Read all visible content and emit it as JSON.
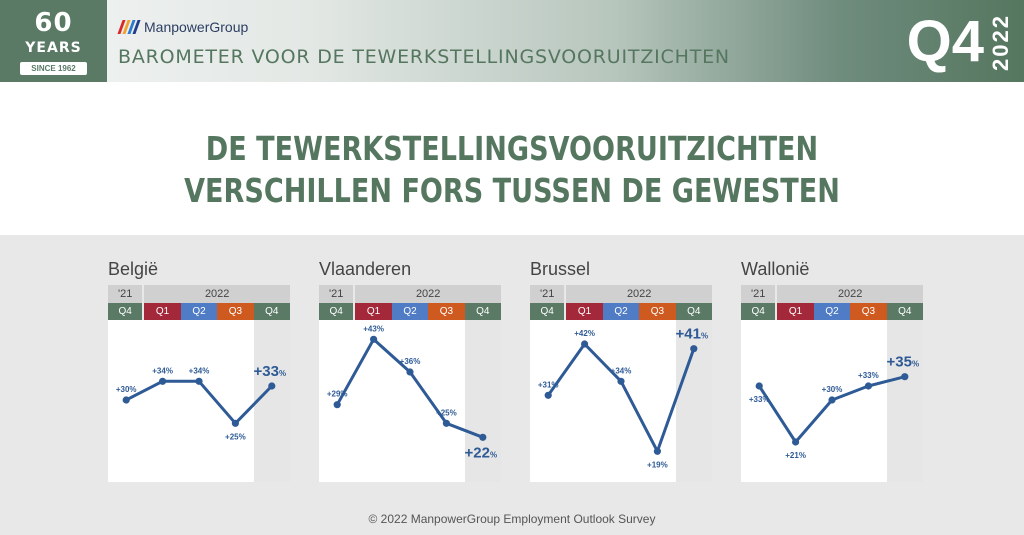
{
  "header": {
    "badge": {
      "number": "60",
      "years": "YEARS",
      "since": "SINCE 1962"
    },
    "brand_name": "ManpowerGroup",
    "subtitle": "BAROMETER VOOR DE TEWERKSTELLINGSVOORUITZICHTEN",
    "quarter": "Q4",
    "year": "2022"
  },
  "title": {
    "line1": "DE TEWERKSTELLINGSVOORUITZICHTEN",
    "line2": "VERSCHILLEN FORS TUSSEN DE GEWESTEN"
  },
  "colors": {
    "green": "#5a7a66",
    "q1": "#a3293a",
    "q2": "#4f7cc4",
    "q3": "#cf5a1f",
    "q4": "#5a7a66",
    "line": "#2e5a96",
    "brand_bars": [
      "#d62a2a",
      "#f0a22e",
      "#2c7bd2",
      "#1f3f8a"
    ]
  },
  "chart_data": [
    {
      "type": "line",
      "title": "België",
      "header_prev_year": "'21",
      "header_year": "2022",
      "categories": [
        "Q4",
        "Q1",
        "Q2",
        "Q3",
        "Q4"
      ],
      "values": [
        30,
        34,
        34,
        25,
        33
      ],
      "labels": [
        "+30%",
        "+34%",
        "+34%",
        "+25%",
        "+33"
      ],
      "last_label_suffix": "%",
      "ylim": [
        15,
        45
      ]
    },
    {
      "type": "line",
      "title": "Vlaanderen",
      "header_prev_year": "'21",
      "header_year": "2022",
      "categories": [
        "Q4",
        "Q1",
        "Q2",
        "Q3",
        "Q4"
      ],
      "values": [
        29,
        43,
        36,
        25,
        22
      ],
      "labels": [
        "+29%",
        "+43%",
        "+36%",
        "+25%",
        "+22"
      ],
      "last_label_suffix": "%",
      "ylim": [
        15,
        45
      ]
    },
    {
      "type": "line",
      "title": "Brussel",
      "header_prev_year": "'21",
      "header_year": "2022",
      "categories": [
        "Q4",
        "Q1",
        "Q2",
        "Q3",
        "Q4"
      ],
      "values": [
        31,
        42,
        34,
        19,
        41
      ],
      "labels": [
        "+31%",
        "+42%",
        "+34%",
        "+19%",
        "+41"
      ],
      "last_label_suffix": "%",
      "ylim": [
        15,
        45
      ]
    },
    {
      "type": "line",
      "title": "Wallonië",
      "header_prev_year": "'21",
      "header_year": "2022",
      "categories": [
        "Q4",
        "Q1",
        "Q2",
        "Q3",
        "Q4"
      ],
      "values": [
        33,
        21,
        30,
        33,
        35
      ],
      "labels": [
        "+33%",
        "+21%",
        "+30%",
        "+33%",
        "+35"
      ],
      "last_label_suffix": "%",
      "ylim": [
        15,
        45
      ]
    }
  ],
  "footer": "© 2022 ManpowerGroup Employment Outlook Survey"
}
